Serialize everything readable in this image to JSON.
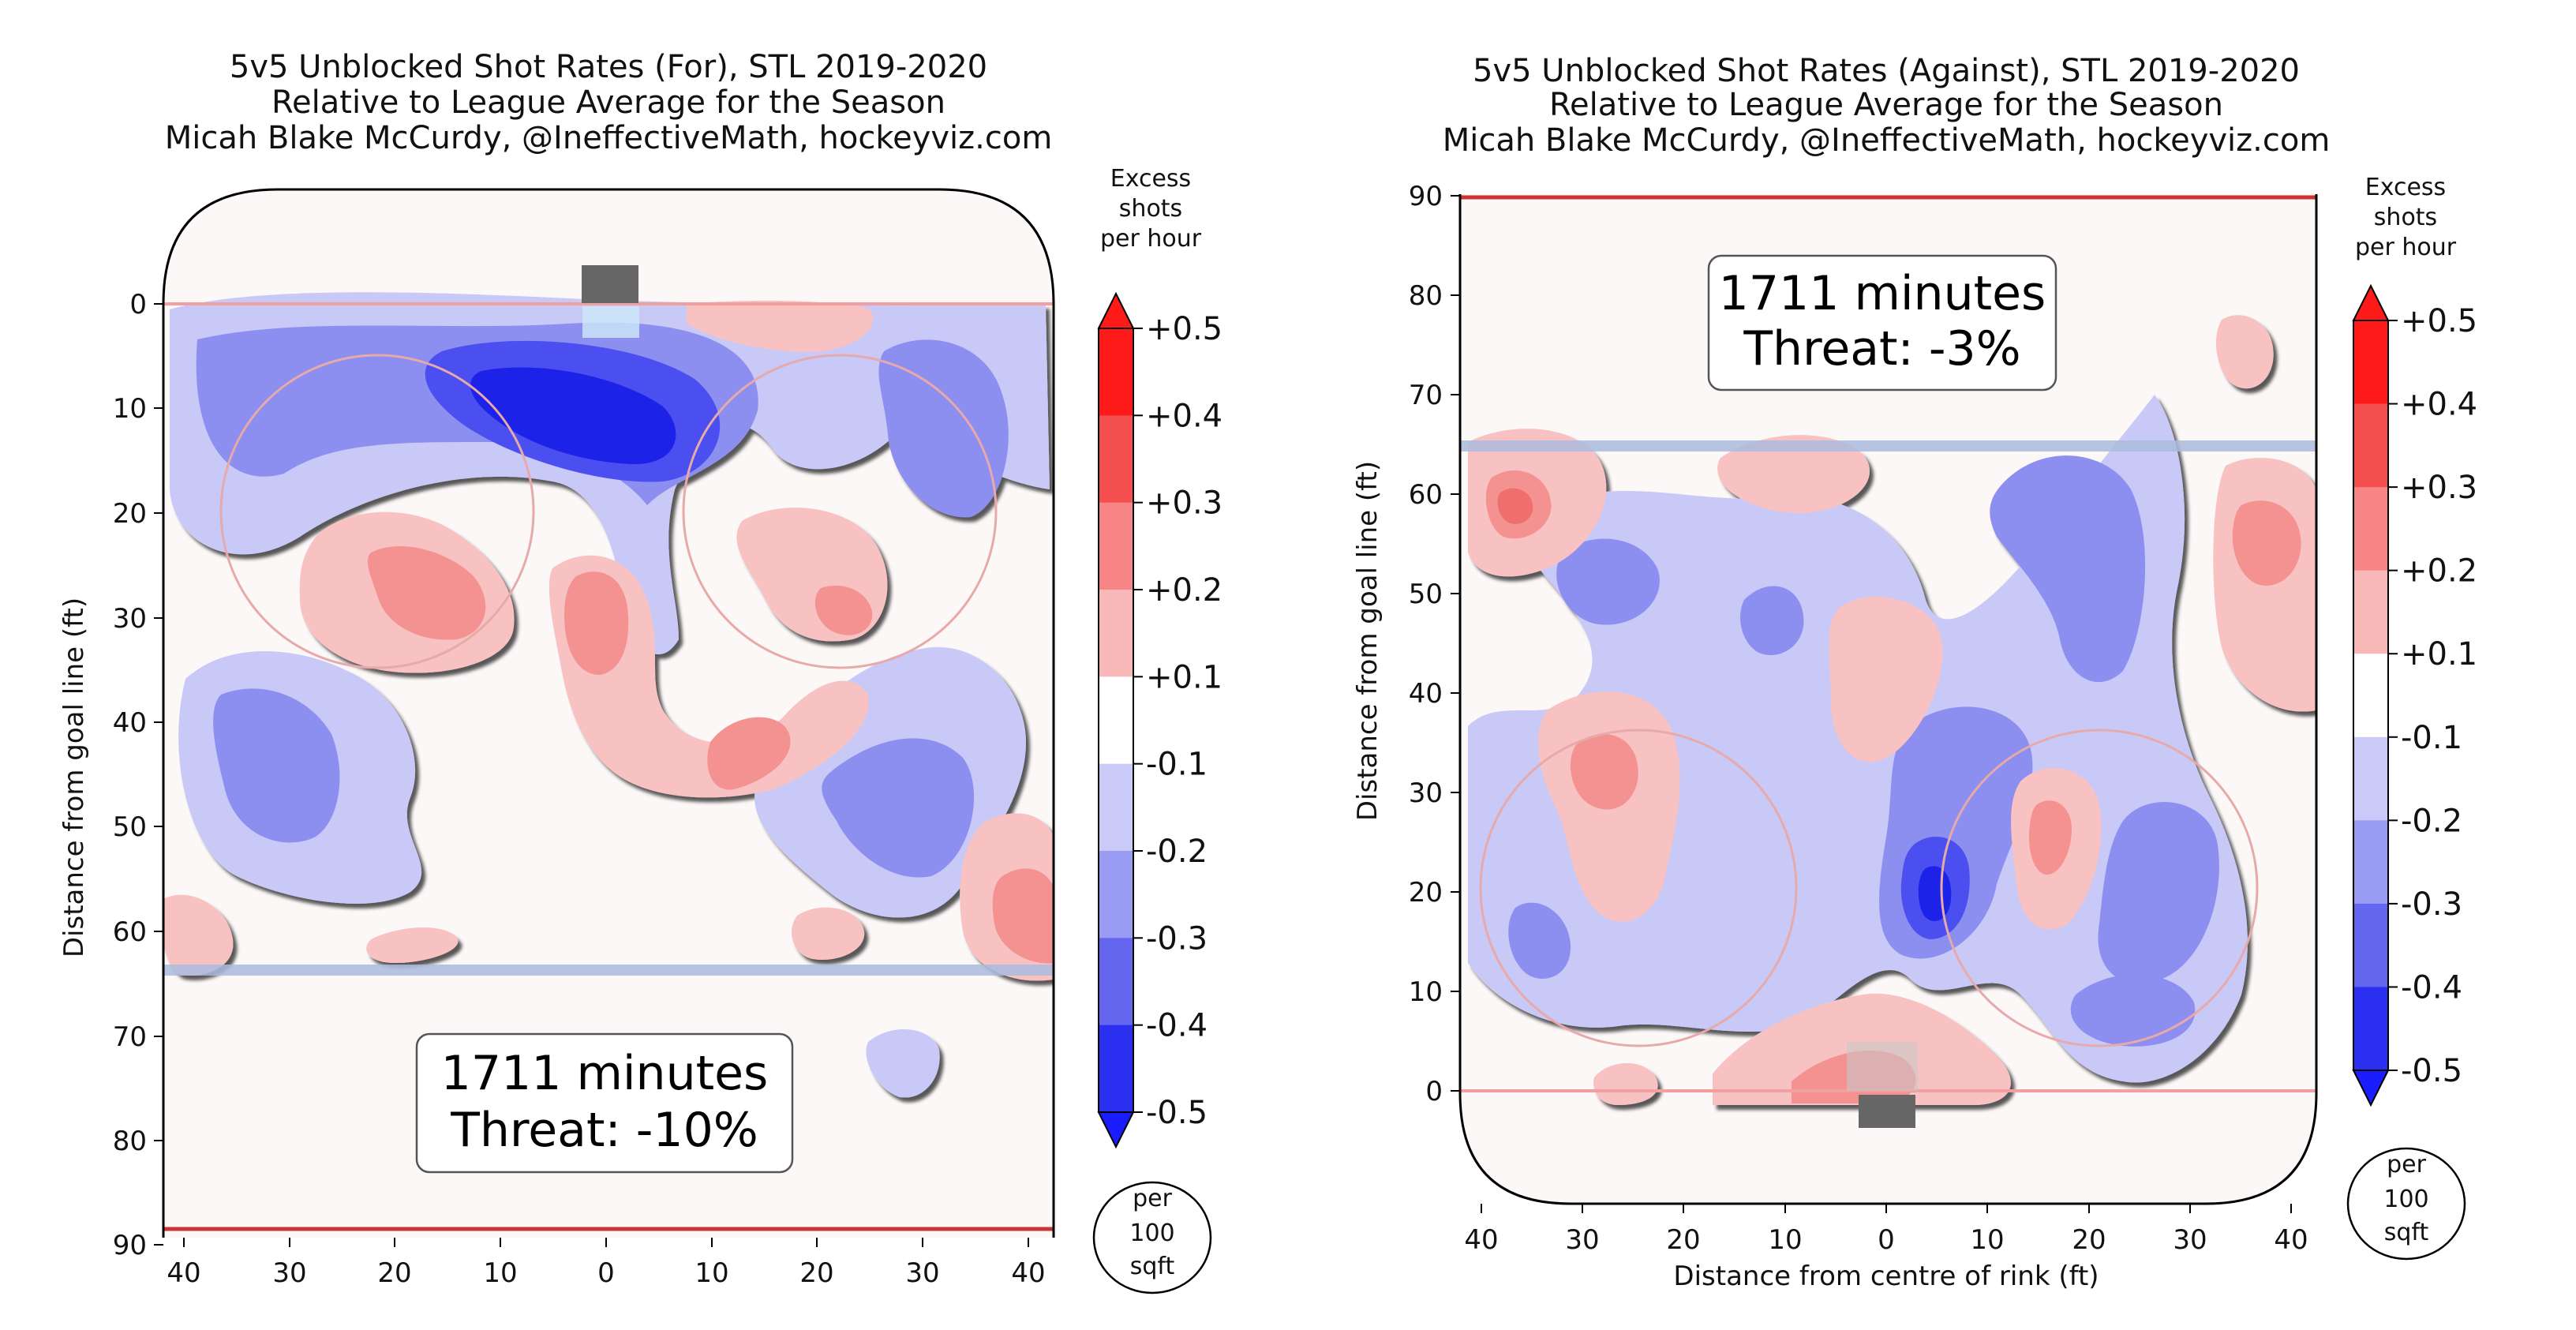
{
  "charts": {
    "left": {
      "title_lines": [
        "5v5 Unblocked Shot Rates (For), STL 2019-2020",
        "Relative to League Average for the Season",
        "Micah Blake McCurdy, @IneffectiveMath, hockeyviz.com"
      ],
      "ylabel": "Distance from goal line (ft)",
      "xlabel": "",
      "info_minutes": "1711 minutes",
      "info_threat": "Threat: -10%"
    },
    "right": {
      "title_lines": [
        "5v5 Unblocked Shot Rates (Against), STL 2019-2020",
        "Relative to League Average for the Season",
        "Micah Blake McCurdy, @IneffectiveMath, hockeyviz.com"
      ],
      "ylabel": "Distance from goal line (ft)",
      "xlabel": "Distance from centre of rink (ft)",
      "info_minutes": "1711 minutes",
      "info_threat": "Threat: -3%"
    }
  },
  "colorbar": {
    "title_lines": [
      "Excess",
      "shots",
      "per hour"
    ],
    "ticks": [
      "+0.5",
      "+0.4",
      "+0.3",
      "+0.2",
      "+0.1",
      "-0.1",
      "-0.2",
      "-0.3",
      "-0.4",
      "-0.5"
    ],
    "unit_lines": [
      "per",
      "100",
      "sqft"
    ]
  },
  "chart_data": [
    {
      "type": "heatmap",
      "title": "5v5 Unblocked Shot Rates (For), STL 2019-2020",
      "subtitle": "Relative to League Average for the Season",
      "ylabel": "Distance from goal line (ft)",
      "xlim": [
        -42.5,
        42.5
      ],
      "ylim": [
        90,
        -11
      ],
      "x_ticks": [
        40,
        30,
        20,
        10,
        0,
        10,
        20,
        30,
        40
      ],
      "y_ticks": [
        0,
        10,
        20,
        30,
        40,
        50,
        60,
        70,
        80,
        90
      ],
      "colorbar_levels": [
        0.5,
        0.4,
        0.3,
        0.2,
        0.1,
        -0.1,
        -0.2,
        -0.3,
        -0.4,
        -0.5
      ],
      "colorbar_unit": "Excess shots per hour per 100 sqft",
      "annotations": [
        "1711 minutes",
        "Threat: -10%"
      ]
    },
    {
      "type": "heatmap",
      "title": "5v5 Unblocked Shot Rates (Against), STL 2019-2020",
      "subtitle": "Relative to League Average for the Season",
      "xlabel": "Distance from centre of rink (ft)",
      "ylabel": "Distance from goal line (ft)",
      "xlim": [
        -42.5,
        42.5
      ],
      "ylim": [
        -11,
        90
      ],
      "x_ticks": [
        40,
        30,
        20,
        10,
        0,
        10,
        20,
        30,
        40
      ],
      "y_ticks": [
        0,
        10,
        20,
        30,
        40,
        50,
        60,
        70,
        80,
        90
      ],
      "colorbar_levels": [
        0.5,
        0.4,
        0.3,
        0.2,
        0.1,
        -0.1,
        -0.2,
        -0.3,
        -0.4,
        -0.5
      ],
      "colorbar_unit": "Excess shots per hour per 100 sqft",
      "annotations": [
        "1711 minutes",
        "Threat: -3%"
      ]
    }
  ]
}
